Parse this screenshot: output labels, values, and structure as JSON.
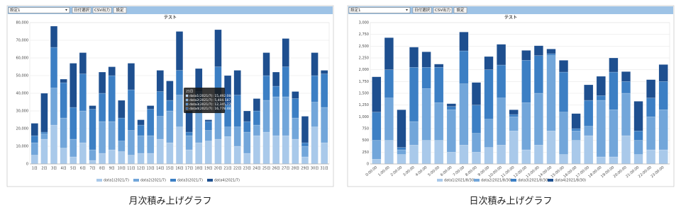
{
  "toolbars": [
    {
      "select": "設定1",
      "buttons": [
        "日付選択",
        "CSV出力",
        "設定"
      ]
    },
    {
      "select": "設定1",
      "buttons": [
        "日付選択",
        "CSV出力",
        "設定"
      ]
    }
  ],
  "captions": [
    "月次積み上げグラフ",
    "日次積み上げグラフ"
  ],
  "chart_data": [
    {
      "type": "stacked_bar",
      "title": "テスト",
      "categories": [
        "1日",
        "2日",
        "3日",
        "4日",
        "5日",
        "6日",
        "7日",
        "8日",
        "9日",
        "10日",
        "11日",
        "12日",
        "13日",
        "14日",
        "15日",
        "16日",
        "17日",
        "18日",
        "19日",
        "20日",
        "21日",
        "22日",
        "23日",
        "24日",
        "25日",
        "26日",
        "27日",
        "28日",
        "29日",
        "30日",
        "31日"
      ],
      "series": [
        {
          "name": "data1(2021/7)",
          "color": "#a9c9ea",
          "values": [
            5000,
            14000,
            22000,
            9000,
            4000,
            12000,
            2000,
            6000,
            8000,
            7000,
            5000,
            6000,
            6000,
            14000,
            12000,
            21000,
            8000,
            12000,
            13000,
            14000,
            15492,
            10000,
            6000,
            16000,
            18000,
            16000,
            16000,
            14000,
            4000,
            21000,
            12000
          ]
        },
        {
          "name": "data2(2021/7)",
          "color": "#72a6da",
          "values": [
            7000,
            3000,
            21000,
            17000,
            10000,
            18000,
            6000,
            18000,
            16000,
            6000,
            14000,
            10000,
            10000,
            13000,
            18000,
            18000,
            8000,
            22000,
            6000,
            24000,
            5405,
            11000,
            12000,
            6000,
            18000,
            22000,
            22000,
            12000,
            6000,
            14000,
            20000
          ]
        },
        {
          "name": "data3(2021/7)",
          "color": "#3c7fc4",
          "values": [
            4000,
            1000,
            23000,
            20000,
            18000,
            21000,
            23000,
            16000,
            26000,
            13000,
            23000,
            6000,
            15000,
            14000,
            6000,
            14000,
            2000,
            7000,
            5000,
            17000,
            12346,
            18000,
            6000,
            8000,
            14000,
            6000,
            17000,
            11000,
            2000,
            15000,
            19000
          ]
        },
        {
          "name": "data4(2021/7)",
          "color": "#1e4f8f",
          "values": [
            7000,
            22000,
            12000,
            2000,
            25000,
            12000,
            2000,
            12000,
            5000,
            10000,
            15000,
            3000,
            2000,
            12000,
            11000,
            22000,
            12000,
            13000,
            1000,
            21000,
            16778,
            14000,
            6000,
            7000,
            13000,
            8000,
            16000,
            4000,
            15000,
            13000,
            2000
          ]
        }
      ],
      "ylim": [
        0,
        80000
      ],
      "yticks": [
        0,
        {
          "value": 10000,
          "label": "10,000"
        },
        {
          "value": 20000,
          "label": "20,000"
        },
        {
          "value": 30000,
          "label": "30,000"
        },
        {
          "value": 40000,
          "label": "40,000"
        },
        {
          "value": 50000,
          "label": "50,000"
        },
        {
          "value": 60000,
          "label": "60,000"
        },
        {
          "value": 70000,
          "label": "70,000"
        },
        {
          "value": 80000,
          "label": "80,000"
        }
      ],
      "grid": true,
      "tooltip": {
        "title": "21日",
        "lines": [
          "data1(2021/7): 15,492.084",
          "data2(2021/7): 5,404.587",
          "data3(2021/7): 12,345.776",
          "data4(2021/7): 16,778.482"
        ]
      }
    },
    {
      "type": "stacked_bar",
      "title": "テスト",
      "categories": [
        "0:00:00",
        "1:00:00",
        "2:00:00",
        "3:00:00",
        "4:00:00",
        "5:00:00",
        "6:00:00",
        "7:00:00",
        "8:00:00",
        "9:00:00",
        "10:00:00",
        "11:00:00",
        "12:00:00",
        "13:00:00",
        "14:00:00",
        "15:00:00",
        "16:00:00",
        "17:00:00",
        "18:00:00",
        "19:00:00",
        "20:00:00",
        "21:00:00",
        "22:00:00",
        "23:00:00"
      ],
      "series": [
        {
          "name": "data1(2021/8/30)",
          "color": "#a9c9ea",
          "values": [
            100,
            500,
            200,
            400,
            500,
            500,
            250,
            400,
            250,
            350,
            400,
            700,
            300,
            400,
            700,
            200,
            500,
            600,
            150,
            150,
            600,
            200,
            300,
            300
          ]
        },
        {
          "name": "data2(2021/8/30)",
          "color": "#72a6da",
          "values": [
            400,
            900,
            100,
            500,
            1100,
            800,
            900,
            1300,
            400,
            600,
            1000,
            300,
            1000,
            1100,
            1600,
            900,
            200,
            200,
            1200,
            1000,
            900,
            300,
            700,
            850
          ]
        },
        {
          "name": "data3(2021/8/30)",
          "color": "#3c7fc4",
          "values": [
            600,
            600,
            50,
            1150,
            450,
            750,
            70,
            700,
            600,
            1050,
            700,
            50,
            900,
            800,
            40,
            850,
            50,
            550,
            100,
            800,
            250,
            200,
            400,
            600
          ]
        },
        {
          "name": "data4(2021/8/30)",
          "color": "#1e4f8f",
          "values": [
            750,
            680,
            800,
            430,
            330,
            70,
            60,
            400,
            480,
            280,
            440,
            100,
            210,
            210,
            100,
            250,
            320,
            330,
            410,
            300,
            210,
            630,
            390,
            360
          ]
        }
      ],
      "ylim": [
        0,
        3000
      ],
      "yticks": [
        0,
        250,
        500,
        750,
        {
          "value": 1000,
          "label": "1,000"
        },
        {
          "value": 1250,
          "label": "1,250"
        },
        {
          "value": 1500,
          "label": "1,500"
        },
        {
          "value": 1750,
          "label": "1,750"
        },
        {
          "value": 2000,
          "label": "2,000"
        },
        {
          "value": 2250,
          "label": "2,250"
        },
        {
          "value": 2500,
          "label": "2,500"
        },
        {
          "value": 2750,
          "label": "2,750"
        },
        {
          "value": 3000,
          "label": "3,000"
        }
      ],
      "grid": true
    }
  ]
}
